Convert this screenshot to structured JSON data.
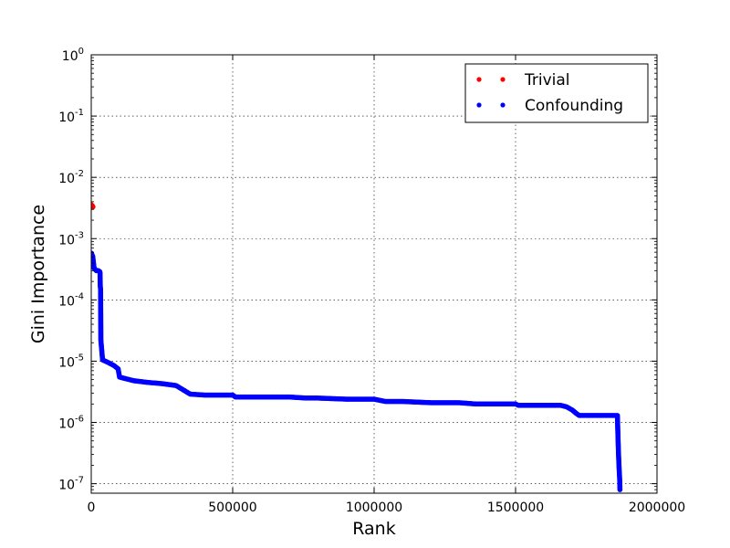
{
  "chart_data": {
    "type": "scatter",
    "title": "",
    "xlabel": "Rank",
    "ylabel": "Gini Importance",
    "xlim": [
      0,
      2000000
    ],
    "ylim": [
      7e-08,
      1
    ],
    "yscale": "log",
    "grid": true,
    "legend_position": "top-right",
    "x_ticks": [
      {
        "value": 0,
        "label": "0"
      },
      {
        "value": 500000,
        "label": "500000"
      },
      {
        "value": 1000000,
        "label": "1000000"
      },
      {
        "value": 1500000,
        "label": "1500000"
      },
      {
        "value": 2000000,
        "label": "2000000"
      }
    ],
    "y_ticks": [
      {
        "value": 1,
        "base": "10",
        "exp": "0"
      },
      {
        "value": 0.1,
        "base": "10",
        "exp": "-1"
      },
      {
        "value": 0.01,
        "base": "10",
        "exp": "-2"
      },
      {
        "value": 0.001,
        "base": "10",
        "exp": "-3"
      },
      {
        "value": 0.0001,
        "base": "10",
        "exp": "-4"
      },
      {
        "value": 1e-05,
        "base": "10",
        "exp": "-5"
      },
      {
        "value": 1e-06,
        "base": "10",
        "exp": "-6"
      },
      {
        "value": 1e-07,
        "base": "10",
        "exp": "-7"
      }
    ],
    "series": [
      {
        "name": "Trivial",
        "color": "#ff0000",
        "x": [
          0,
          1500,
          3000,
          4500,
          6000
        ],
        "y": [
          0.0036,
          0.0035,
          0.0034,
          0.0034,
          0.0033
        ]
      },
      {
        "name": "Confounding",
        "color": "#0000ff",
        "x": [
          0,
          5000,
          10000,
          18000,
          25000,
          30000,
          31000,
          32000,
          33000,
          34000,
          40000,
          60000,
          80000,
          95000,
          100000,
          120000,
          150000,
          200000,
          250000,
          300000,
          330000,
          350000,
          400000,
          500000,
          510000,
          520000,
          600000,
          700000,
          760000,
          800000,
          900000,
          1000000,
          1040000,
          1100000,
          1200000,
          1300000,
          1360000,
          1400000,
          1500000,
          1510000,
          1600000,
          1660000,
          1680000,
          1700000,
          1715000,
          1725000,
          1800000,
          1850000,
          1860000,
          1862000,
          1864000,
          1866000,
          1868000,
          1869000
        ],
        "y": [
          0.00058,
          0.00052,
          0.00033,
          0.0003,
          0.0003,
          0.00029,
          0.00028,
          0.000165,
          0.00015,
          2.2e-05,
          1.05e-05,
          9.5e-06,
          8.5e-06,
          7.5e-06,
          5.5e-06,
          5.2e-06,
          4.8e-06,
          4.5e-06,
          4.3e-06,
          4e-06,
          3.3e-06,
          2.9e-06,
          2.8e-06,
          2.8e-06,
          2.6e-06,
          2.6e-06,
          2.6e-06,
          2.6e-06,
          2.5e-06,
          2.5e-06,
          2.4e-06,
          2.4e-06,
          2.2e-06,
          2.2e-06,
          2.1e-06,
          2.1e-06,
          2e-06,
          2e-06,
          2e-06,
          1.9e-06,
          1.9e-06,
          1.9e-06,
          1.8e-06,
          1.6e-06,
          1.4e-06,
          1.3e-06,
          1.3e-06,
          1.3e-06,
          1.3e-06,
          6e-07,
          3e-07,
          1.8e-07,
          1.2e-07,
          8e-08
        ]
      }
    ]
  }
}
